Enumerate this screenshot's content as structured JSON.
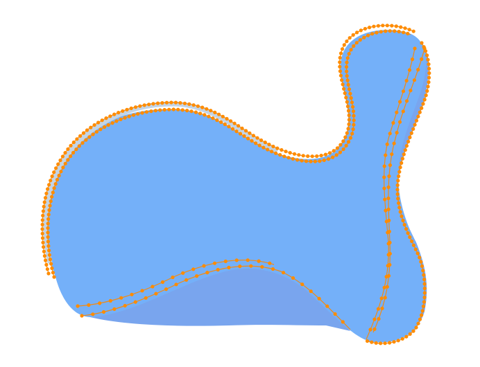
{
  "colors": {
    "background": "#ffffff",
    "shape_fill": "#74b0f9",
    "shadow_fill": "#79a5ee",
    "outline_gap": "#c3d4e6",
    "curve_stroke": "#f08a16",
    "marker_fill": "#ff8c00"
  },
  "figure": {
    "type": "blob-shape-with-dotted-contours",
    "marker": "small-dot"
  }
}
